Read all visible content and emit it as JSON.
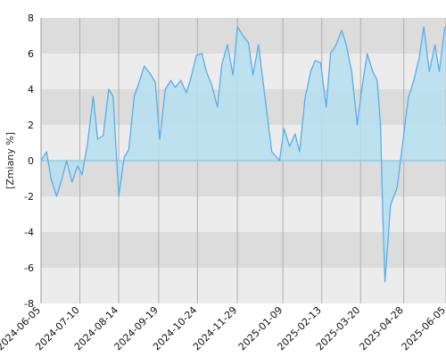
{
  "chart_data": {
    "type": "area",
    "title": "",
    "xlabel": "",
    "ylabel": "[Zmiany %]",
    "ylim": [
      -8,
      8
    ],
    "yticks": [
      -8,
      -6,
      -4,
      -2,
      0,
      2,
      4,
      6,
      8
    ],
    "xlim": [
      "2024-06-05",
      "2025-06-05"
    ],
    "xticks": [
      "2024-06-05",
      "2024-07-10",
      "2024-08-14",
      "2024-09-19",
      "2024-10-24",
      "2024-11-29",
      "2025-01-09",
      "2025-02-13",
      "2025-03-20",
      "2025-04-28",
      "2025-06-05"
    ],
    "grid": true,
    "legend": "none",
    "colors": {
      "line": "#5aaee8",
      "fill": "#b5dff0",
      "band_dark": "#dcdcdc",
      "band_light": "#ececec",
      "gridline": "#b0b0b0",
      "zero_line": "#6ec4e8"
    },
    "series": [
      {
        "x": [
          "2024-06-05",
          "2024-06-10",
          "2024-06-14",
          "2024-06-19",
          "2024-06-24",
          "2024-06-28",
          "2024-07-03",
          "2024-07-08",
          "2024-07-12",
          "2024-07-17",
          "2024-07-22",
          "2024-07-26",
          "2024-07-31",
          "2024-08-05",
          "2024-08-09",
          "2024-08-14",
          "2024-08-19",
          "2024-08-23",
          "2024-08-28",
          "2024-09-02",
          "2024-09-06",
          "2024-09-11",
          "2024-09-16",
          "2024-09-20",
          "2024-09-25",
          "2024-09-30",
          "2024-10-04",
          "2024-10-09",
          "2024-10-14",
          "2024-10-18",
          "2024-10-23",
          "2024-10-28",
          "2024-11-01",
          "2024-11-06",
          "2024-11-11",
          "2024-11-15",
          "2024-11-20",
          "2024-11-25",
          "2024-11-29",
          "2024-12-04",
          "2024-12-09",
          "2024-12-13",
          "2024-12-18",
          "2024-12-23",
          "2024-12-30",
          "2025-01-06",
          "2025-01-10",
          "2025-01-15",
          "2025-01-20",
          "2025-01-24",
          "2025-01-29",
          "2025-02-03",
          "2025-02-07",
          "2025-02-12",
          "2025-02-17",
          "2025-02-21",
          "2025-02-26",
          "2025-03-03",
          "2025-03-07",
          "2025-03-12",
          "2025-03-17",
          "2025-03-21",
          "2025-03-26",
          "2025-03-31",
          "2025-04-04",
          "2025-04-07",
          "2025-04-09",
          "2025-04-11",
          "2025-04-16",
          "2025-04-22",
          "2025-04-28",
          "2025-05-02",
          "2025-05-07",
          "2025-05-12",
          "2025-05-16",
          "2025-05-21",
          "2025-05-26",
          "2025-05-30",
          "2025-06-04"
        ],
        "y": [
          0.0,
          0.5,
          -1.0,
          -2.0,
          -1.0,
          0.0,
          -1.2,
          -0.3,
          -0.8,
          1.0,
          3.6,
          1.2,
          1.4,
          4.0,
          3.6,
          -2.0,
          0.2,
          0.6,
          3.6,
          4.5,
          5.3,
          4.9,
          4.4,
          1.2,
          4.0,
          4.5,
          4.1,
          4.5,
          3.8,
          4.6,
          5.9,
          6.0,
          5.0,
          4.2,
          3.0,
          5.4,
          6.5,
          4.8,
          7.5,
          7.0,
          6.6,
          4.8,
          6.5,
          4.0,
          0.5,
          0.0,
          1.8,
          0.8,
          1.5,
          0.5,
          3.5,
          5.0,
          5.6,
          5.5,
          3.0,
          6.0,
          6.5,
          7.3,
          6.5,
          5.0,
          2.0,
          4.0,
          6.0,
          5.0,
          4.5,
          2.0,
          -3.0,
          -6.8,
          -2.5,
          -1.5,
          1.5,
          3.5,
          4.5,
          5.8,
          7.5,
          5.0,
          6.5,
          5.0,
          7.5
        ]
      }
    ]
  }
}
